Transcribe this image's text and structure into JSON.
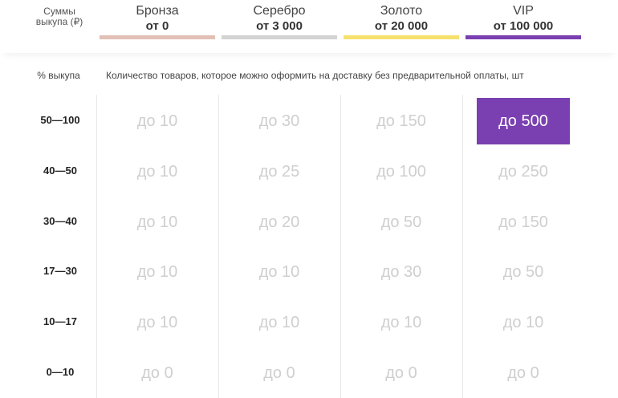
{
  "header": {
    "sum_label": "Суммы выкупа (₽)",
    "tiers": [
      {
        "name": "Бронза",
        "amount": "от 0",
        "color": "#e2c0b6"
      },
      {
        "name": "Серебро",
        "amount": "от 3 000",
        "color": "#d3d3d3"
      },
      {
        "name": "Золото",
        "amount": "от 20 000",
        "color": "#f6e06e"
      },
      {
        "name": "VIP",
        "amount": "от 100 000",
        "color": "#7a3fb0"
      }
    ]
  },
  "subheader": {
    "percent_label": "% выкупа",
    "description": "Количество товаров, которое можно оформить на доставку без предварительной оплаты, шт"
  },
  "rows": [
    {
      "range": "50—100",
      "values": [
        "до 10",
        "до 30",
        "до 150",
        "до 500"
      ]
    },
    {
      "range": "40—50",
      "values": [
        "до 10",
        "до 25",
        "до 100",
        "до 250"
      ]
    },
    {
      "range": "30—40",
      "values": [
        "до 10",
        "до 20",
        "до 50",
        "до 150"
      ]
    },
    {
      "range": "17—30",
      "values": [
        "до 10",
        "до 10",
        "до 30",
        "до 50"
      ]
    },
    {
      "range": "10—17",
      "values": [
        "до 10",
        "до 10",
        "до 10",
        "до 10"
      ]
    },
    {
      "range": "0—10",
      "values": [
        "до 0",
        "до 0",
        "до 0",
        "до 0"
      ]
    }
  ],
  "highlight_color": "#7a3fb0"
}
